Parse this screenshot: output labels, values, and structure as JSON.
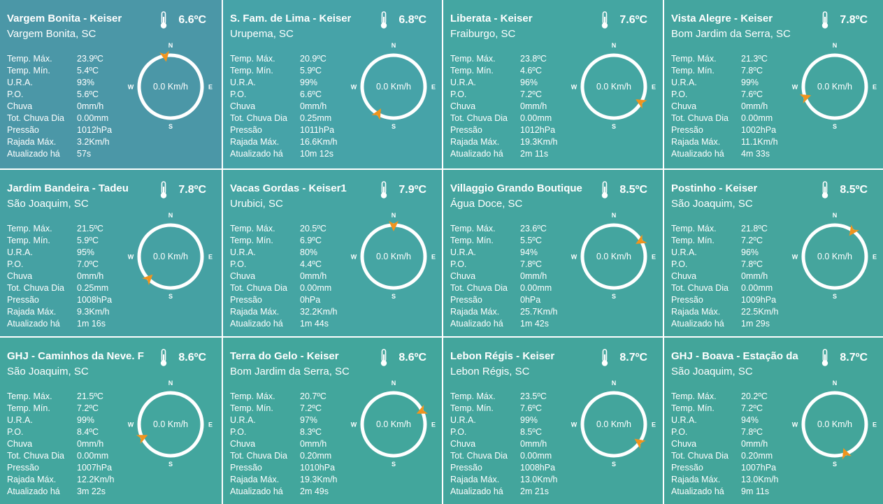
{
  "stations": [
    {
      "title": "Vargem Bonita - Keiser",
      "location": "Vargem Bonita, SC",
      "temp": "6.6ºC",
      "wind": "0.0 Km/h",
      "dir_deg": -10,
      "bg": "#4b97a7",
      "stats": [
        {
          "label": "Temp. Máx.",
          "value": "23.9ºC"
        },
        {
          "label": "Temp. Mín.",
          "value": "5.4ºC"
        },
        {
          "label": "U.R.A.",
          "value": "93%"
        },
        {
          "label": "P.O.",
          "value": "5.6ºC"
        },
        {
          "label": "Chuva",
          "value": "0mm/h"
        },
        {
          "label": "Tot. Chuva Dia",
          "value": "0.00mm"
        },
        {
          "label": "Pressão",
          "value": "1012hPa"
        },
        {
          "label": "Rajada Máx.",
          "value": "3.2Km/h"
        },
        {
          "label": "Atualizado há",
          "value": "57s"
        }
      ]
    },
    {
      "title": "S. Fam. de Lima - Keiser",
      "location": "Urupema, SC",
      "temp": "6.8ºC",
      "wind": "0.0 Km/h",
      "dir_deg": 210,
      "bg": "#46a3a8",
      "stats": [
        {
          "label": "Temp. Máx.",
          "value": "20.9ºC"
        },
        {
          "label": "Temp. Mín.",
          "value": "5.9ºC"
        },
        {
          "label": "U.R.A.",
          "value": "99%"
        },
        {
          "label": "P.O.",
          "value": "6.6ºC"
        },
        {
          "label": "Chuva",
          "value": "0mm/h"
        },
        {
          "label": "Tot. Chuva Dia",
          "value": "0.25mm"
        },
        {
          "label": "Pressão",
          "value": "1011hPa"
        },
        {
          "label": "Rajada Máx.",
          "value": "16.6Km/h"
        },
        {
          "label": "Atualizado há",
          "value": "10m 12s"
        }
      ]
    },
    {
      "title": "Liberata - Keiser",
      "location": "Fraiburgo, SC",
      "temp": "7.6ºC",
      "wind": "0.0 Km/h",
      "dir_deg": 120,
      "bg": "#44a6a2",
      "stats": [
        {
          "label": "Temp. Máx.",
          "value": "23.8ºC"
        },
        {
          "label": "Temp. Mín.",
          "value": "4.6ºC"
        },
        {
          "label": "U.R.A.",
          "value": "96%"
        },
        {
          "label": "P.O.",
          "value": "7.2ºC"
        },
        {
          "label": "Chuva",
          "value": "0mm/h"
        },
        {
          "label": "Tot. Chuva Dia",
          "value": "0.00mm"
        },
        {
          "label": "Pressão",
          "value": "1012hPa"
        },
        {
          "label": "Rajada Máx.",
          "value": "19.3Km/h"
        },
        {
          "label": "Atualizado há",
          "value": "2m 11s"
        }
      ]
    },
    {
      "title": "Vista Alegre - Keiser",
      "location": "Bom Jardim da Serra, SC",
      "temp": "7.8ºC",
      "wind": "0.0 Km/h",
      "dir_deg": 250,
      "bg": "#44a59f",
      "stats": [
        {
          "label": "Temp. Máx.",
          "value": "21.3ºC"
        },
        {
          "label": "Temp. Mín.",
          "value": "7.8ºC"
        },
        {
          "label": "U.R.A.",
          "value": "99%"
        },
        {
          "label": "P.O.",
          "value": "7.6ºC"
        },
        {
          "label": "Chuva",
          "value": "0mm/h"
        },
        {
          "label": "Tot. Chuva Dia",
          "value": "0.00mm"
        },
        {
          "label": "Pressão",
          "value": "1002hPa"
        },
        {
          "label": "Rajada Máx.",
          "value": "11.1Km/h"
        },
        {
          "label": "Atualizado há",
          "value": "4m 33s"
        }
      ]
    },
    {
      "title": "Jardim Bandeira - Tadeu",
      "location": "São Joaquim, SC",
      "temp": "7.8ºC",
      "wind": "0.0 Km/h",
      "dir_deg": 225,
      "bg": "#45a1a3",
      "stats": [
        {
          "label": "Temp. Máx.",
          "value": "21.5ºC"
        },
        {
          "label": "Temp. Mín.",
          "value": "5.9ºC"
        },
        {
          "label": "U.R.A.",
          "value": "95%"
        },
        {
          "label": "P.O.",
          "value": "7.0ºC"
        },
        {
          "label": "Chuva",
          "value": "0mm/h"
        },
        {
          "label": "Tot. Chuva Dia",
          "value": "0.25mm"
        },
        {
          "label": "Pressão",
          "value": "1008hPa"
        },
        {
          "label": "Rajada Máx.",
          "value": "9.3Km/h"
        },
        {
          "label": "Atualizado há",
          "value": "1m 16s"
        }
      ]
    },
    {
      "title": "Vacas Gordas - Keiser1",
      "location": "Urubici, SC",
      "temp": "7.9ºC",
      "wind": "0.0 Km/h",
      "dir_deg": 0,
      "bg": "#45a5a3",
      "stats": [
        {
          "label": "Temp. Máx.",
          "value": "20.5ºC"
        },
        {
          "label": "Temp. Mín.",
          "value": "6.9ºC"
        },
        {
          "label": "U.R.A.",
          "value": "80%"
        },
        {
          "label": "P.O.",
          "value": "4.4ºC"
        },
        {
          "label": "Chuva",
          "value": "0mm/h"
        },
        {
          "label": "Tot. Chuva Dia",
          "value": "0.00mm"
        },
        {
          "label": "Pressão",
          "value": "0hPa"
        },
        {
          "label": "Rajada Máx.",
          "value": "32.2Km/h"
        },
        {
          "label": "Atualizado há",
          "value": "1m 44s"
        }
      ]
    },
    {
      "title": "Villaggio Grando Boutique",
      "location": "Água Doce, SC",
      "temp": "8.5ºC",
      "wind": "0.0 Km/h",
      "dir_deg": 60,
      "bg": "#44a59f",
      "stats": [
        {
          "label": "Temp. Máx.",
          "value": "23.6ºC"
        },
        {
          "label": "Temp. Mín.",
          "value": "5.5ºC"
        },
        {
          "label": "U.R.A.",
          "value": "94%"
        },
        {
          "label": "P.O.",
          "value": "7.8ºC"
        },
        {
          "label": "Chuva",
          "value": "0mm/h"
        },
        {
          "label": "Tot. Chuva Dia",
          "value": "0.00mm"
        },
        {
          "label": "Pressão",
          "value": "0hPa"
        },
        {
          "label": "Rajada Máx.",
          "value": "25.7Km/h"
        },
        {
          "label": "Atualizado há",
          "value": "1m 42s"
        }
      ]
    },
    {
      "title": "Postinho - Keiser",
      "location": "São Joaquim, SC",
      "temp": "8.5ºC",
      "wind": "0.0 Km/h",
      "dir_deg": 35,
      "bg": "#45a59d",
      "stats": [
        {
          "label": "Temp. Máx.",
          "value": "21.8ºC"
        },
        {
          "label": "Temp. Mín.",
          "value": "7.2ºC"
        },
        {
          "label": "U.R.A.",
          "value": "96%"
        },
        {
          "label": "P.O.",
          "value": "7.8ºC"
        },
        {
          "label": "Chuva",
          "value": "0mm/h"
        },
        {
          "label": "Tot. Chuva Dia",
          "value": "0.00mm"
        },
        {
          "label": "Pressão",
          "value": "1009hPa"
        },
        {
          "label": "Rajada Máx.",
          "value": "22.5Km/h"
        },
        {
          "label": "Atualizado há",
          "value": "1m 29s"
        }
      ]
    },
    {
      "title": "GHJ - Caminhos da Neve. F",
      "location": "São Joaquim, SC",
      "temp": "8.6ºC",
      "wind": "0.0 Km/h",
      "dir_deg": 245,
      "bg": "#43a69e",
      "stats": [
        {
          "label": "Temp. Máx.",
          "value": "21.5ºC"
        },
        {
          "label": "Temp. Mín.",
          "value": "7.2ºC"
        },
        {
          "label": "U.R.A.",
          "value": "99%"
        },
        {
          "label": "P.O.",
          "value": "8.4ºC"
        },
        {
          "label": "Chuva",
          "value": "0mm/h"
        },
        {
          "label": "Tot. Chuva Dia",
          "value": "0.00mm"
        },
        {
          "label": "Pressão",
          "value": "1007hPa"
        },
        {
          "label": "Rajada Máx.",
          "value": "12.2Km/h"
        },
        {
          "label": "Atualizado há",
          "value": "3m 22s"
        }
      ]
    },
    {
      "title": "Terra do Gelo - Keiser",
      "location": "Bom Jardim da Serra, SC",
      "temp": "8.6ºC",
      "wind": "0.0 Km/h",
      "dir_deg": 65,
      "bg": "#42a69c",
      "stats": [
        {
          "label": "Temp. Máx.",
          "value": "20.7ºC"
        },
        {
          "label": "Temp. Mín.",
          "value": "7.2ºC"
        },
        {
          "label": "U.R.A.",
          "value": "97%"
        },
        {
          "label": "P.O.",
          "value": "8.3ºC"
        },
        {
          "label": "Chuva",
          "value": "0mm/h"
        },
        {
          "label": "Tot. Chuva Dia",
          "value": "0.20mm"
        },
        {
          "label": "Pressão",
          "value": "1010hPa"
        },
        {
          "label": "Rajada Máx.",
          "value": "19.3Km/h"
        },
        {
          "label": "Atualizado há",
          "value": "2m 49s"
        }
      ]
    },
    {
      "title": "Lebon Régis - Keiser",
      "location": "Lebon Régis, SC",
      "temp": "8.7ºC",
      "wind": "0.0 Km/h",
      "dir_deg": 125,
      "bg": "#43a59c",
      "stats": [
        {
          "label": "Temp. Máx.",
          "value": "23.5ºC"
        },
        {
          "label": "Temp. Mín.",
          "value": "7.6ºC"
        },
        {
          "label": "U.R.A.",
          "value": "99%"
        },
        {
          "label": "P.O.",
          "value": "8.5ºC"
        },
        {
          "label": "Chuva",
          "value": "0mm/h"
        },
        {
          "label": "Tot. Chuva Dia",
          "value": "0.00mm"
        },
        {
          "label": "Pressão",
          "value": "1008hPa"
        },
        {
          "label": "Rajada Máx.",
          "value": "13.0Km/h"
        },
        {
          "label": "Atualizado há",
          "value": "2m 21s"
        }
      ]
    },
    {
      "title": "GHJ - Boava - Estação da",
      "location": "São Joaquim, SC",
      "temp": "8.7ºC",
      "wind": "0.0 Km/h",
      "dir_deg": 160,
      "bg": "#43a59a",
      "stats": [
        {
          "label": "Temp. Máx.",
          "value": "20.2ºC"
        },
        {
          "label": "Temp. Mín.",
          "value": "7.2ºC"
        },
        {
          "label": "U.R.A.",
          "value": "94%"
        },
        {
          "label": "P.O.",
          "value": "7.8ºC"
        },
        {
          "label": "Chuva",
          "value": "0mm/h"
        },
        {
          "label": "Tot. Chuva Dia",
          "value": "0.20mm"
        },
        {
          "label": "Pressão",
          "value": "1007hPa"
        },
        {
          "label": "Rajada Máx.",
          "value": "13.0Km/h"
        },
        {
          "label": "Atualizado há",
          "value": "9m 11s"
        }
      ]
    }
  ],
  "compass": {
    "n": "N",
    "e": "E",
    "s": "S",
    "w": "W"
  },
  "colors": {
    "arrow": "#f0941e",
    "ring": "#ffffff",
    "divider": "#ffffff"
  }
}
